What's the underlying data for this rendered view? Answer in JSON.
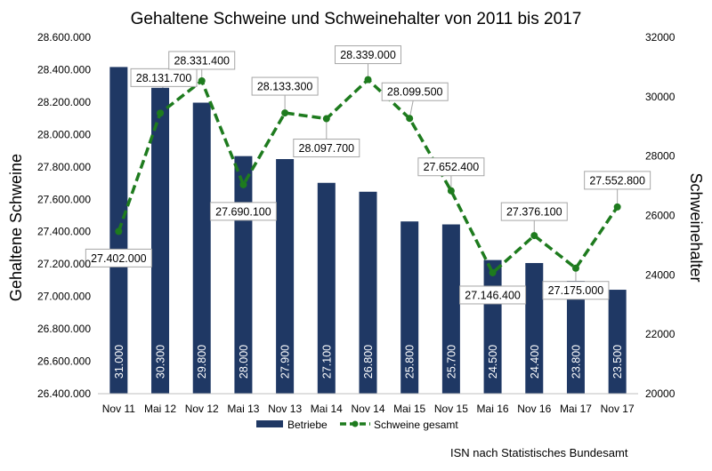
{
  "chart_data": {
    "type": "bar+line",
    "title": "Gehaltene Schweine und Schweinehalter von 2011 bis 2017",
    "categories": [
      "Nov 11",
      "Mai 12",
      "Nov 12",
      "Mai 13",
      "Nov 13",
      "Mai 14",
      "Nov 14",
      "Mai 15",
      "Nov 15",
      "Mai 16",
      "Nov 16",
      "Mai 17",
      "Nov 17"
    ],
    "series": [
      {
        "name": "Betriebe",
        "type": "bar",
        "axis": "right",
        "color": "#1F3864",
        "values": [
          31000,
          30300,
          29800,
          28000,
          27900,
          27100,
          26800,
          25800,
          25700,
          24500,
          24400,
          23800,
          23500
        ],
        "labels": [
          "31.000",
          "30.300",
          "29.800",
          "28.000",
          "27.900",
          "27.100",
          "26.800",
          "25.800",
          "25.700",
          "24.500",
          "24.400",
          "23.800",
          "23.500"
        ]
      },
      {
        "name": "Schweine gesamt",
        "type": "line",
        "axis": "left",
        "color": "#1E7B1E",
        "values": [
          27402000,
          28131700,
          28331400,
          27690100,
          28133300,
          28097700,
          28339000,
          28099500,
          27652400,
          27146400,
          27376100,
          27175000,
          27552800
        ],
        "labels": [
          "27.402.000",
          "28.131.700",
          "28.331.400",
          "27.690.100",
          "28.133.300",
          "28.097.700",
          "28.339.000",
          "28.099.500",
          "27.652.400",
          "27.146.400",
          "27.376.100",
          "27.175.000",
          "27.552.800"
        ]
      }
    ],
    "y_left": {
      "label": "Gehaltene Schweine",
      "range": [
        26400000,
        28600000
      ],
      "ticks": [
        26400000,
        26600000,
        26800000,
        27000000,
        27200000,
        27400000,
        27600000,
        27800000,
        28000000,
        28200000,
        28400000,
        28600000
      ],
      "tick_labels": [
        "26.400.000",
        "26.600.000",
        "26.800.000",
        "27.000.000",
        "27.200.000",
        "27.400.000",
        "27.600.000",
        "27.800.000",
        "28.000.000",
        "28.200.000",
        "28.400.000",
        "28.600.000"
      ]
    },
    "y_right": {
      "label": "Schweinehalter",
      "range": [
        20000,
        32000
      ],
      "ticks": [
        20000,
        22000,
        24000,
        26000,
        28000,
        30000,
        32000
      ],
      "tick_labels": [
        "20000",
        "22000",
        "24000",
        "26000",
        "28000",
        "30000",
        "32000"
      ]
    },
    "grid": false,
    "legend": "bottom-center",
    "source": "ISN nach Statistisches Bundesamt"
  }
}
